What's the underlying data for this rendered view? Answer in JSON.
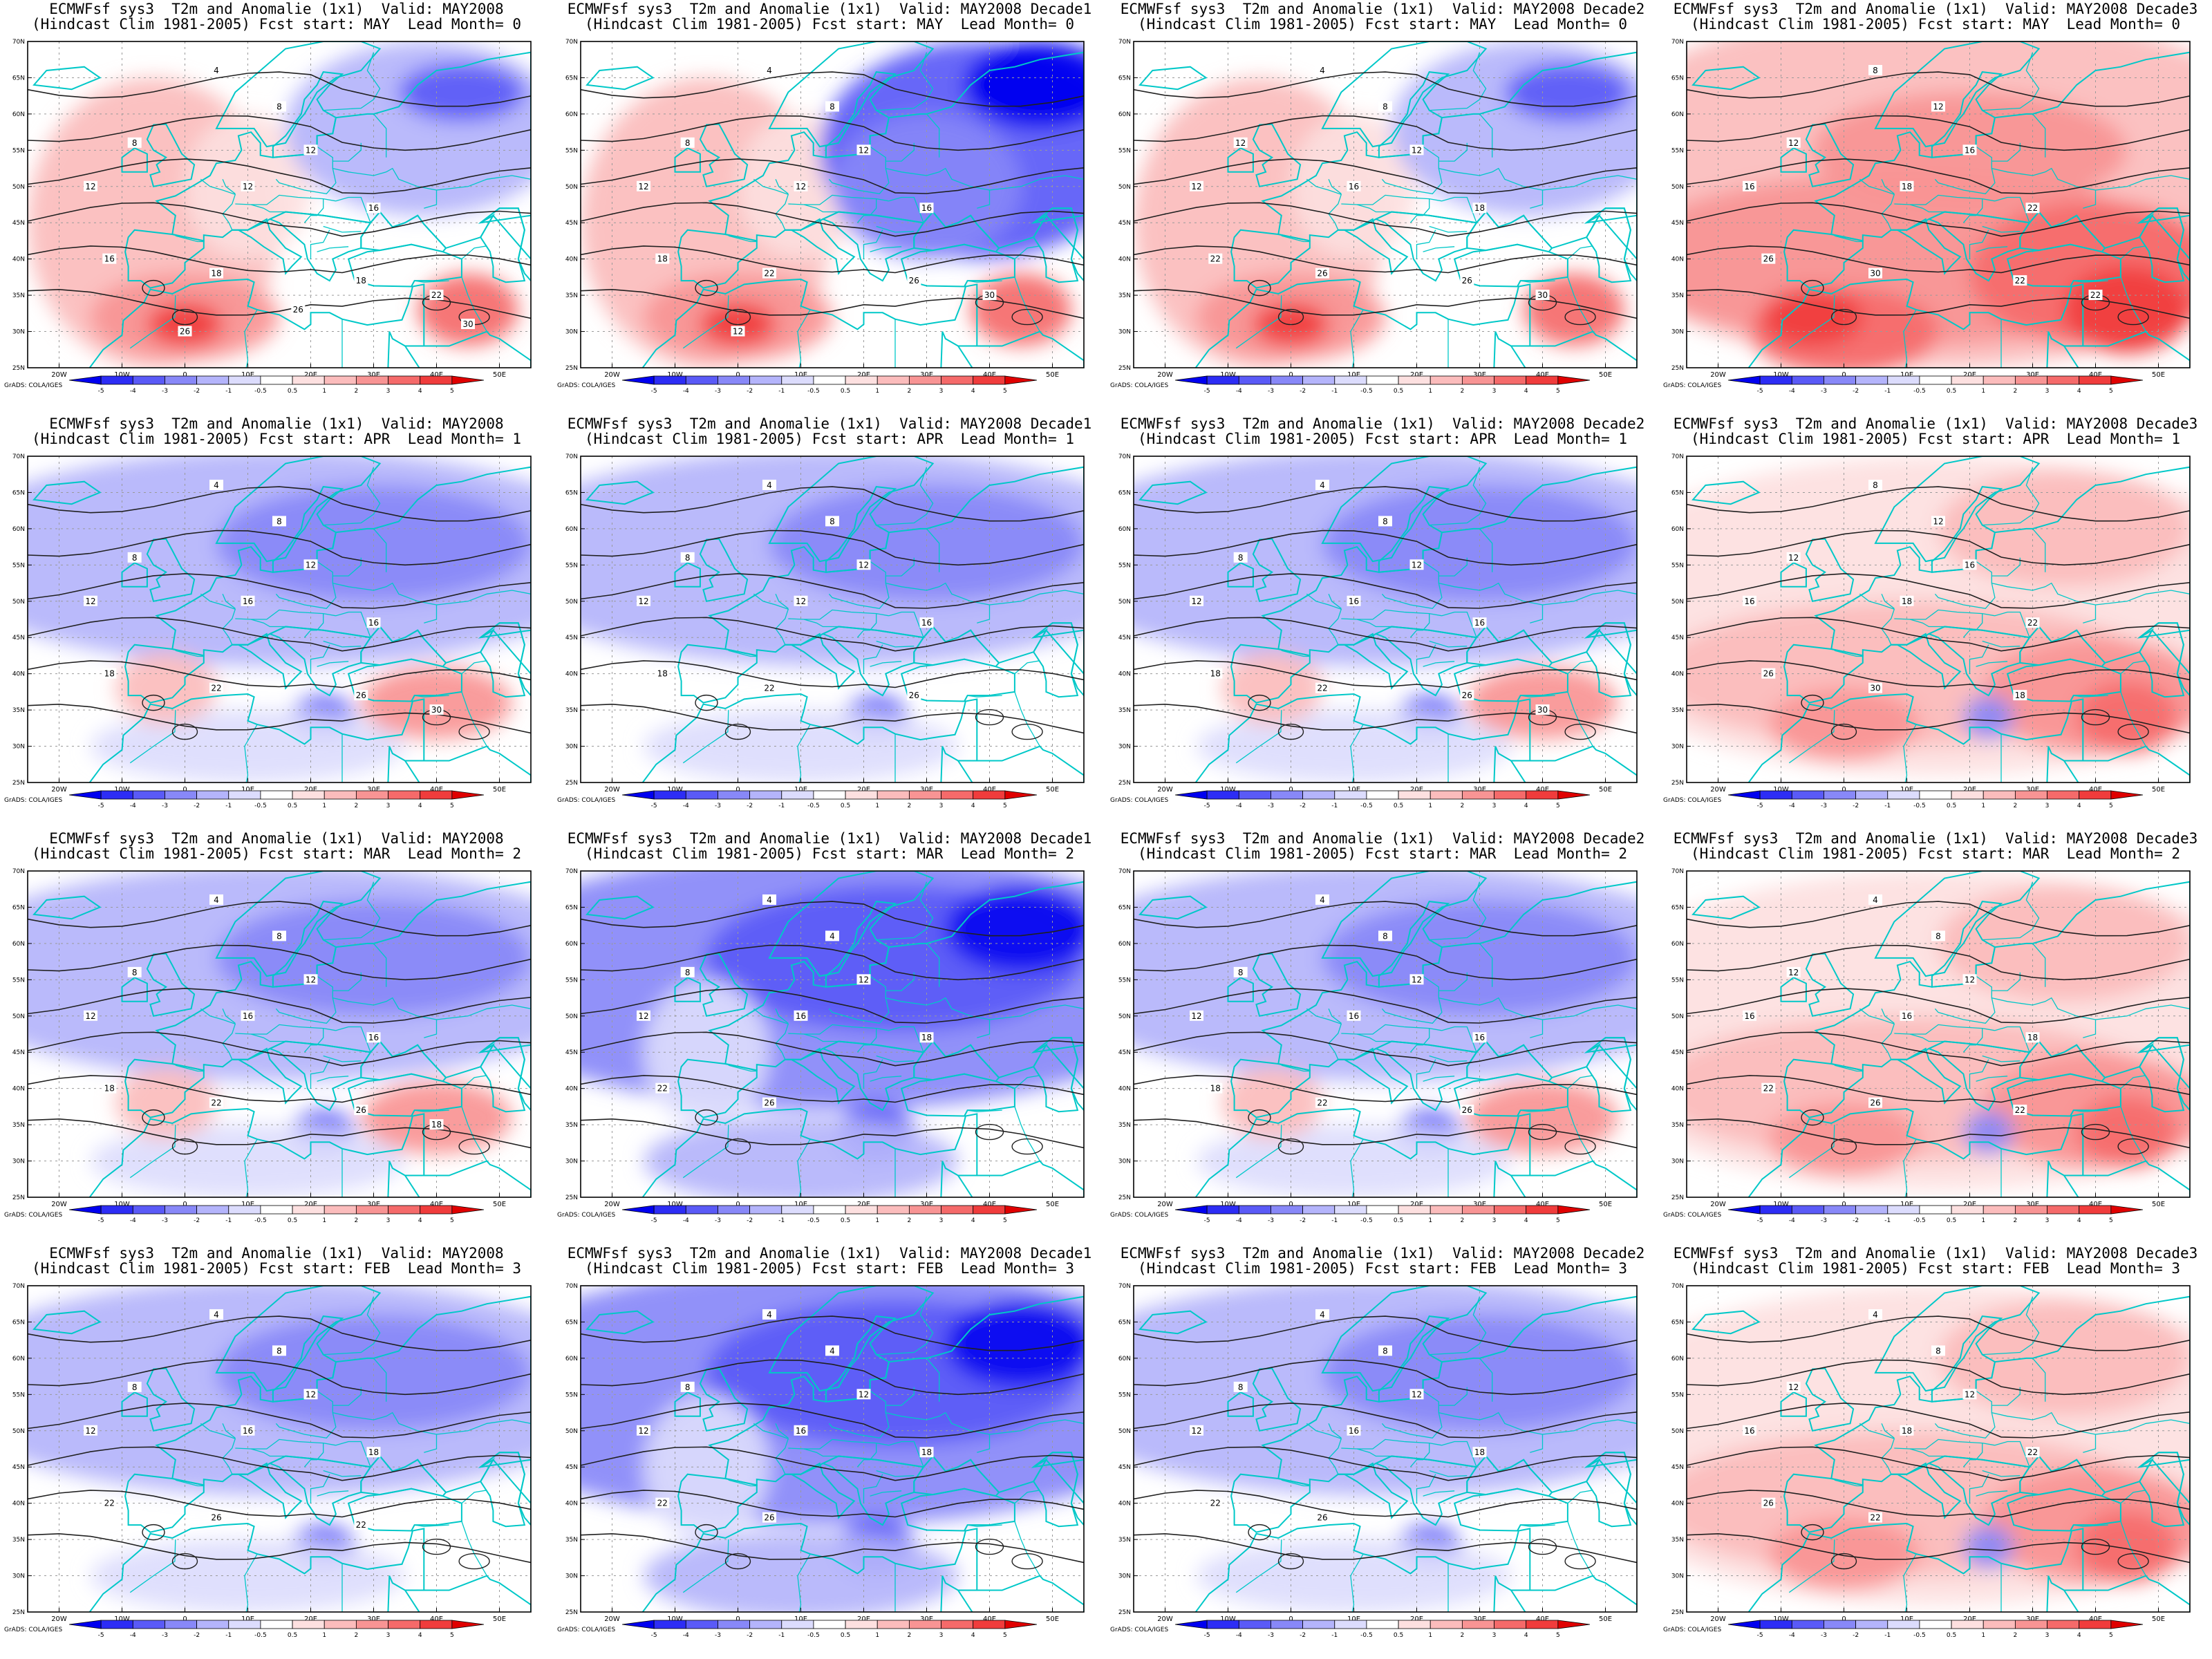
{
  "colors": {
    "neg5": "#0000f0",
    "neg4": "#2d2df5",
    "neg3": "#5a5af7",
    "neg2": "#8888f8",
    "neg1": "#b4b4fb",
    "neg05": "#dcdcfd",
    "neutral": "#ffffff",
    "pos05": "#fde0e0",
    "pos1": "#fbbcbc",
    "pos2": "#f89494",
    "pos3": "#f56a6a",
    "pos4": "#f03c3c",
    "pos5": "#e00000",
    "coast": "#00c8c8",
    "contour": "#202020",
    "gridline": "#9a9a9a"
  },
  "axes": {
    "lat_labels": [
      "70N",
      "65N",
      "60N",
      "55N",
      "50N",
      "45N",
      "40N",
      "35N",
      "30N",
      "25N"
    ],
    "lon_labels": [
      "20W",
      "10W",
      "0",
      "10E",
      "20E",
      "30E",
      "40E",
      "50E"
    ]
  },
  "colorbar": {
    "labels": [
      "-5",
      "-4",
      "-3",
      "-2",
      "-1",
      "-0.5",
      "0.5",
      "1",
      "2",
      "3",
      "4",
      "5"
    ]
  },
  "credit": "GrADS: COLA/IGES",
  "rows": [
    {
      "lead": "Lead Month= 0",
      "start": "Fcst start: MAY",
      "panels": [
        {
          "title1": "ECMWFsf sys3  T2m and Anomalie (1x1)  Valid: MAY2008",
          "title2": "(Hindcast Clim 1981-2005) Fcst start: MAY  Lead Month= 0",
          "anomaly_pattern": "warm-west cool-east",
          "mean_anomaly": 0.8,
          "contour_labels": [
            "4",
            "8",
            "8",
            "12",
            "12",
            "12",
            "16",
            "16",
            "18",
            "18",
            "22",
            "26",
            "30",
            "26"
          ]
        },
        {
          "title1": "ECMWFsf sys3  T2m and Anomalie (1x1)  Valid: MAY2008 Decade1",
          "title2": "(Hindcast Clim 1981-2005) Fcst start: MAY  Lead Month= 0",
          "anomaly_pattern": "warm-west strong-cool-east",
          "mean_anomaly": -0.6,
          "contour_labels": [
            "4",
            "8",
            "8",
            "12",
            "12",
            "12",
            "16",
            "18",
            "22",
            "26",
            "30",
            "12"
          ]
        },
        {
          "title1": "ECMWFsf sys3  T2m and Anomalie (1x1)  Valid: MAY2008 Decade2",
          "title2": "(Hindcast Clim 1981-2005) Fcst start: MAY  Lead Month= 0",
          "anomaly_pattern": "warm-west cool-north",
          "mean_anomaly": 0.6,
          "contour_labels": [
            "4",
            "8",
            "12",
            "12",
            "12",
            "16",
            "18",
            "22",
            "26",
            "26",
            "30"
          ]
        },
        {
          "title1": "ECMWFsf sys3  T2m and Anomalie (1x1)  Valid: MAY2008 Decade3",
          "title2": "(Hindcast Clim 1981-2005) Fcst start: MAY  Lead Month= 0",
          "anomaly_pattern": "strong-warm",
          "mean_anomaly": 2.4,
          "contour_labels": [
            "8",
            "12",
            "12",
            "16",
            "16",
            "18",
            "22",
            "26",
            "30",
            "22",
            "22"
          ]
        }
      ]
    },
    {
      "lead": "Lead Month= 1",
      "start": "Fcst start: APR",
      "panels": [
        {
          "title1": "ECMWFsf sys3  T2m and Anomalie (1x1)  Valid: MAY2008",
          "title2": "(Hindcast Clim 1981-2005) Fcst start: APR  Lead Month= 1",
          "anomaly_pattern": "weak-cool-north warm-east",
          "mean_anomaly": -0.2,
          "contour_labels": [
            "4",
            "8",
            "8",
            "12",
            "12",
            "16",
            "16",
            "18",
            "22",
            "26",
            "30"
          ]
        },
        {
          "title1": "ECMWFsf sys3  T2m and Anomalie (1x1)  Valid: MAY2008 Decade1",
          "title2": "(Hindcast Clim 1981-2005) Fcst start: APR  Lead Month= 1",
          "anomaly_pattern": "cool",
          "mean_anomaly": -1.4,
          "contour_labels": [
            "4",
            "8",
            "8",
            "12",
            "12",
            "12",
            "16",
            "18",
            "22",
            "26"
          ]
        },
        {
          "title1": "ECMWFsf sys3  T2m and Anomalie (1x1)  Valid: MAY2008 Decade2",
          "title2": "(Hindcast Clim 1981-2005) Fcst start: APR  Lead Month= 1",
          "anomaly_pattern": "weak-cool-north warm-south",
          "mean_anomaly": 0.0,
          "contour_labels": [
            "4",
            "8",
            "8",
            "12",
            "12",
            "16",
            "16",
            "18",
            "22",
            "26",
            "30"
          ]
        },
        {
          "title1": "ECMWFsf sys3  T2m and Anomalie (1x1)  Valid: MAY2008 Decade3",
          "title2": "(Hindcast Clim 1981-2005) Fcst start: APR  Lead Month= 1",
          "anomaly_pattern": "warm",
          "mean_anomaly": 1.6,
          "contour_labels": [
            "8",
            "12",
            "12",
            "16",
            "16",
            "18",
            "22",
            "26",
            "30",
            "18"
          ]
        }
      ]
    },
    {
      "lead": "Lead Month= 2",
      "start": "Fcst start: MAR",
      "panels": [
        {
          "title1": "ECMWFsf sys3  T2m and Anomalie (1x1)  Valid: MAY2008",
          "title2": "(Hindcast Clim 1981-2005) Fcst start: MAR  Lead Month= 2",
          "anomaly_pattern": "cool-north warm-south",
          "mean_anomaly": -0.3,
          "contour_labels": [
            "4",
            "8",
            "8",
            "12",
            "12",
            "16",
            "16",
            "18",
            "22",
            "26",
            "18"
          ]
        },
        {
          "title1": "ECMWFsf sys3  T2m and Anomalie (1x1)  Valid: MAY2008 Decade1",
          "title2": "(Hindcast Clim 1981-2005) Fcst start: MAR  Lead Month= 2",
          "anomaly_pattern": "strong-cool",
          "mean_anomaly": -1.8,
          "contour_labels": [
            "4",
            "4",
            "8",
            "12",
            "12",
            "16",
            "18",
            "22",
            "26"
          ]
        },
        {
          "title1": "ECMWFsf sys3  T2m and Anomalie (1x1)  Valid: MAY2008 Decade2",
          "title2": "(Hindcast Clim 1981-2005) Fcst start: MAR  Lead Month= 2",
          "anomaly_pattern": "cool-north warm-south",
          "mean_anomaly": -0.2,
          "contour_labels": [
            "4",
            "8",
            "8",
            "12",
            "12",
            "16",
            "16",
            "18",
            "22",
            "26"
          ]
        },
        {
          "title1": "ECMWFsf sys3  T2m and Anomalie (1x1)  Valid: MAY2008 Decade3",
          "title2": "(Hindcast Clim 1981-2005) Fcst start: MAR  Lead Month= 2",
          "anomaly_pattern": "warm",
          "mean_anomaly": 1.3,
          "contour_labels": [
            "4",
            "8",
            "12",
            "12",
            "16",
            "16",
            "18",
            "22",
            "26",
            "22"
          ]
        }
      ]
    },
    {
      "lead": "Lead Month= 3",
      "start": "Fcst start: FEB",
      "panels": [
        {
          "title1": "ECMWFsf sys3  T2m and Anomalie (1x1)  Valid: MAY2008",
          "title2": "(Hindcast Clim 1981-2005) Fcst start: FEB  Lead Month= 3",
          "anomaly_pattern": "weak-cool",
          "mean_anomaly": -0.4,
          "contour_labels": [
            "4",
            "8",
            "8",
            "12",
            "12",
            "16",
            "18",
            "22",
            "26",
            "22"
          ]
        },
        {
          "title1": "ECMWFsf sys3  T2m and Anomalie (1x1)  Valid: MAY2008 Decade1",
          "title2": "(Hindcast Clim 1981-2005) Fcst start: FEB  Lead Month= 3",
          "anomaly_pattern": "strong-cool",
          "mean_anomaly": -1.9,
          "contour_labels": [
            "4",
            "4",
            "8",
            "12",
            "12",
            "16",
            "18",
            "22",
            "26"
          ]
        },
        {
          "title1": "ECMWFsf sys3  T2m and Anomalie (1x1)  Valid: MAY2008 Decade2",
          "title2": "(Hindcast Clim 1981-2005) Fcst start: FEB  Lead Month= 3",
          "anomaly_pattern": "cool",
          "mean_anomaly": -0.7,
          "contour_labels": [
            "4",
            "8",
            "8",
            "12",
            "12",
            "16",
            "18",
            "22",
            "26"
          ]
        },
        {
          "title1": "ECMWFsf sys3  T2m and Anomalie (1x1)  Valid: MAY2008 Decade3",
          "title2": "(Hindcast Clim 1981-2005) Fcst start: FEB  Lead Month= 3",
          "anomaly_pattern": "warm",
          "mean_anomaly": 1.1,
          "contour_labels": [
            "4",
            "8",
            "12",
            "12",
            "16",
            "18",
            "22",
            "26",
            "22"
          ]
        }
      ]
    }
  ]
}
